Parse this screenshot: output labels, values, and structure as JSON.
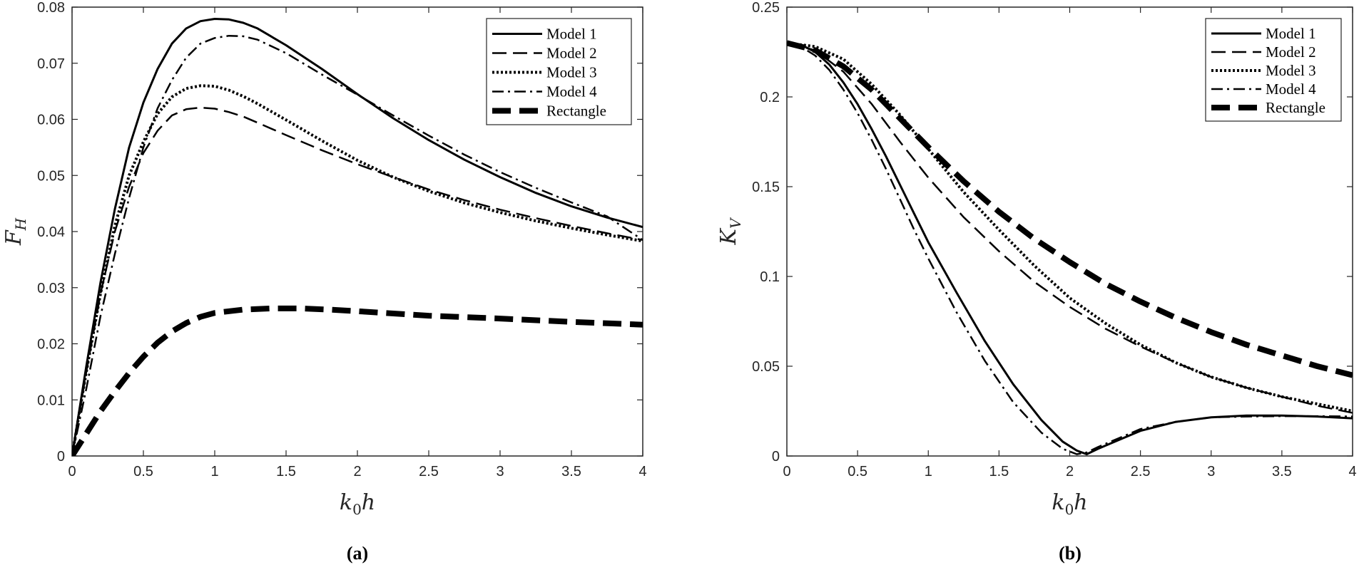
{
  "chart_data": [
    {
      "type": "line",
      "caption": "(a)",
      "xlabel": {
        "main": "k",
        "sub": "0",
        "tail": "h"
      },
      "ylabel": {
        "main": "F",
        "sub": "H"
      },
      "xlim": [
        0,
        4
      ],
      "ylim": [
        0,
        0.08
      ],
      "xticks": [
        0,
        0.5,
        1,
        1.5,
        2,
        2.5,
        3,
        3.5,
        4
      ],
      "xtick_labels": [
        "0",
        "0.5",
        "1",
        "1.5",
        "2",
        "2.5",
        "3",
        "3.5",
        "4"
      ],
      "yticks": [
        0,
        0.01,
        0.02,
        0.03,
        0.04,
        0.05,
        0.06,
        0.07,
        0.08
      ],
      "ytick_labels": [
        "0",
        "0.01",
        "0.02",
        "0.03",
        "0.04",
        "0.05",
        "0.06",
        "0.07",
        "0.08"
      ],
      "legend_position": "top-right",
      "series": [
        {
          "name": "Model 1",
          "style": "solid",
          "x": [
            0,
            0.1,
            0.2,
            0.3,
            0.4,
            0.5,
            0.6,
            0.7,
            0.8,
            0.9,
            1.0,
            1.1,
            1.2,
            1.3,
            1.5,
            1.75,
            2.0,
            2.25,
            2.5,
            2.75,
            3.0,
            3.25,
            3.5,
            3.75,
            4.0
          ],
          "y": [
            0,
            0.016,
            0.031,
            0.044,
            0.055,
            0.063,
            0.069,
            0.0735,
            0.0762,
            0.0775,
            0.0779,
            0.0778,
            0.0772,
            0.0762,
            0.0732,
            0.069,
            0.0645,
            0.0602,
            0.0563,
            0.0528,
            0.0497,
            0.0469,
            0.0445,
            0.0425,
            0.0408
          ]
        },
        {
          "name": "Model 2",
          "style": "dashed",
          "x": [
            0,
            0.1,
            0.2,
            0.3,
            0.4,
            0.5,
            0.6,
            0.7,
            0.8,
            0.9,
            1.0,
            1.1,
            1.2,
            1.3,
            1.5,
            1.75,
            2.0,
            2.25,
            2.5,
            2.75,
            3.0,
            3.25,
            3.5,
            3.75,
            4.0
          ],
          "y": [
            0,
            0.015,
            0.029,
            0.04,
            0.048,
            0.054,
            0.058,
            0.0607,
            0.0618,
            0.0621,
            0.0619,
            0.0613,
            0.0605,
            0.0594,
            0.0572,
            0.0545,
            0.052,
            0.0497,
            0.0475,
            0.0456,
            0.0439,
            0.0424,
            0.041,
            0.0397,
            0.0385
          ]
        },
        {
          "name": "Model 3",
          "style": "dotted",
          "x": [
            0,
            0.1,
            0.2,
            0.3,
            0.4,
            0.5,
            0.6,
            0.7,
            0.8,
            0.9,
            1.0,
            1.1,
            1.2,
            1.3,
            1.5,
            1.75,
            2.0,
            2.25,
            2.5,
            2.75,
            3.0,
            3.25,
            3.5,
            3.75,
            4.0
          ],
          "y": [
            0,
            0.015,
            0.029,
            0.041,
            0.05,
            0.056,
            0.061,
            0.064,
            0.0655,
            0.066,
            0.0659,
            0.0652,
            0.0641,
            0.0628,
            0.0599,
            0.0562,
            0.0527,
            0.0497,
            0.0472,
            0.0451,
            0.0434,
            0.0419,
            0.0406,
            0.0394,
            0.0383
          ]
        },
        {
          "name": "Model 4",
          "style": "dashdot",
          "x": [
            0,
            0.1,
            0.2,
            0.3,
            0.4,
            0.5,
            0.6,
            0.7,
            0.8,
            0.9,
            1.0,
            1.1,
            1.2,
            1.3,
            1.5,
            1.75,
            2.0,
            2.25,
            2.5,
            2.75,
            3.0,
            3.25,
            3.5,
            3.75,
            4.0
          ],
          "y": [
            0,
            0.012,
            0.025,
            0.036,
            0.046,
            0.055,
            0.062,
            0.067,
            0.071,
            0.0735,
            0.0745,
            0.0749,
            0.0748,
            0.0742,
            0.0718,
            0.068,
            0.0644,
            0.0607,
            0.0571,
            0.0537,
            0.0506,
            0.0478,
            0.0452,
            0.0427,
            0.0385
          ]
        },
        {
          "name": "Rectangle",
          "style": "thick-dashed",
          "x": [
            0,
            0.1,
            0.2,
            0.3,
            0.4,
            0.5,
            0.6,
            0.7,
            0.8,
            0.9,
            1.0,
            1.2,
            1.4,
            1.6,
            1.8,
            2.0,
            2.5,
            3.0,
            3.5,
            4.0
          ],
          "y": [
            0,
            0.004,
            0.008,
            0.0115,
            0.0148,
            0.0177,
            0.0202,
            0.0222,
            0.0237,
            0.0248,
            0.0255,
            0.0261,
            0.0263,
            0.0263,
            0.0261,
            0.0258,
            0.025,
            0.0245,
            0.0239,
            0.0234
          ]
        }
      ]
    },
    {
      "type": "line",
      "caption": "(b)",
      "xlabel": {
        "main": "k",
        "sub": "0",
        "tail": "h"
      },
      "ylabel": {
        "main": "K",
        "sub": "V"
      },
      "xlim": [
        0,
        4
      ],
      "ylim": [
        0,
        0.25
      ],
      "xticks": [
        0,
        0.5,
        1,
        1.5,
        2,
        2.5,
        3,
        3.5,
        4
      ],
      "xtick_labels": [
        "0",
        "0.5",
        "1",
        "1.5",
        "2",
        "2.5",
        "3",
        "3.5",
        "4"
      ],
      "yticks": [
        0,
        0.05,
        0.1,
        0.15,
        0.2,
        0.25
      ],
      "ytick_labels": [
        "0",
        "0.05",
        "0.1",
        "0.15",
        "0.2",
        "0.25"
      ],
      "legend_position": "top-right",
      "series": [
        {
          "name": "Model 1",
          "style": "solid",
          "x": [
            0,
            0.1,
            0.2,
            0.3,
            0.4,
            0.5,
            0.6,
            0.7,
            0.8,
            0.9,
            1.0,
            1.2,
            1.4,
            1.6,
            1.8,
            1.95,
            2.05,
            2.12,
            2.2,
            2.35,
            2.5,
            2.75,
            3.0,
            3.25,
            3.5,
            3.75,
            4.0
          ],
          "y": [
            0.23,
            0.229,
            0.225,
            0.218,
            0.208,
            0.196,
            0.182,
            0.167,
            0.151,
            0.135,
            0.119,
            0.091,
            0.064,
            0.04,
            0.02,
            0.008,
            0.003,
            0.001,
            0.004,
            0.009,
            0.014,
            0.019,
            0.0215,
            0.0225,
            0.0225,
            0.022,
            0.021
          ]
        },
        {
          "name": "Model 2",
          "style": "dashed",
          "x": [
            0,
            0.2,
            0.4,
            0.6,
            0.8,
            1.0,
            1.25,
            1.5,
            1.75,
            2.0,
            2.25,
            2.5,
            2.75,
            3.0,
            3.25,
            3.5,
            3.75,
            4.0
          ],
          "y": [
            0.23,
            0.226,
            0.214,
            0.196,
            0.175,
            0.155,
            0.133,
            0.114,
            0.097,
            0.083,
            0.071,
            0.061,
            0.052,
            0.044,
            0.038,
            0.033,
            0.028,
            0.024
          ]
        },
        {
          "name": "Model 3",
          "style": "dotted",
          "x": [
            0,
            0.2,
            0.4,
            0.6,
            0.8,
            1.0,
            1.25,
            1.5,
            1.75,
            2.0,
            2.25,
            2.5,
            2.75,
            3.0,
            3.25,
            3.5,
            3.75,
            4.0
          ],
          "y": [
            0.23,
            0.228,
            0.221,
            0.207,
            0.19,
            0.171,
            0.147,
            0.126,
            0.106,
            0.088,
            0.074,
            0.062,
            0.052,
            0.044,
            0.038,
            0.033,
            0.029,
            0.025
          ]
        },
        {
          "name": "Model 4",
          "style": "dashdot",
          "x": [
            0,
            0.1,
            0.2,
            0.3,
            0.4,
            0.5,
            0.6,
            0.7,
            0.8,
            0.9,
            1.0,
            1.2,
            1.4,
            1.6,
            1.8,
            1.95,
            2.05,
            2.12,
            2.2,
            2.35,
            2.5,
            2.75,
            3.0,
            3.25,
            3.5,
            3.75,
            4.0
          ],
          "y": [
            0.23,
            0.228,
            0.223,
            0.215,
            0.204,
            0.191,
            0.176,
            0.16,
            0.143,
            0.126,
            0.11,
            0.08,
            0.053,
            0.03,
            0.013,
            0.004,
            0.001,
            0.002,
            0.005,
            0.01,
            0.015,
            0.019,
            0.0215,
            0.022,
            0.0222,
            0.0222,
            0.022
          ]
        },
        {
          "name": "Rectangle",
          "style": "thick-dashed",
          "x": [
            0,
            0.2,
            0.4,
            0.6,
            0.8,
            1.0,
            1.25,
            1.5,
            1.75,
            2.0,
            2.25,
            2.5,
            2.75,
            3.0,
            3.25,
            3.5,
            3.75,
            4.0
          ],
          "y": [
            0.23,
            0.226,
            0.217,
            0.204,
            0.188,
            0.172,
            0.153,
            0.136,
            0.121,
            0.108,
            0.096,
            0.086,
            0.077,
            0.069,
            0.062,
            0.056,
            0.05,
            0.045
          ]
        }
      ]
    }
  ]
}
